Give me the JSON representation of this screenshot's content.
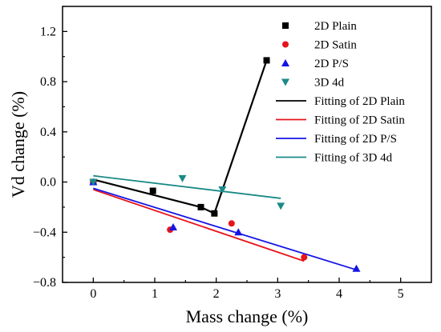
{
  "chart_data": {
    "type": "scatter",
    "xlabel": "Mass change (%)",
    "ylabel": "Vd change (%)",
    "xlim": [
      -0.5,
      5.5
    ],
    "ylim": [
      -0.8,
      1.4
    ],
    "xticks": [
      0,
      1,
      2,
      3,
      4,
      5
    ],
    "yticks": [
      -0.8,
      -0.4,
      0.0,
      0.4,
      0.8,
      1.2
    ],
    "xtick_labels": [
      "0",
      "1",
      "2",
      "3",
      "4",
      "5"
    ],
    "ytick_labels": [
      "−0.8",
      "−0.4",
      "0.0",
      "0.4",
      "0.8",
      "1.2"
    ],
    "grid": false,
    "legend_position": "top-right",
    "series": [
      {
        "name": "2D Plain",
        "marker": "square",
        "color": "#000000",
        "points": [
          [
            0.0,
            0.0
          ],
          [
            0.97,
            -0.07
          ],
          [
            1.75,
            -0.2
          ],
          [
            1.97,
            -0.25
          ],
          [
            2.82,
            0.97
          ]
        ]
      },
      {
        "name": "2D Satin",
        "marker": "circle",
        "color": "#e8141b",
        "points": [
          [
            0.0,
            0.0
          ],
          [
            1.25,
            -0.38
          ],
          [
            2.25,
            -0.33
          ],
          [
            3.43,
            -0.6
          ]
        ]
      },
      {
        "name": "2D P/S",
        "marker": "triangle-up",
        "color": "#1414e6",
        "points": [
          [
            0.0,
            0.0
          ],
          [
            1.3,
            -0.36
          ],
          [
            2.36,
            -0.4
          ],
          [
            4.28,
            -0.69
          ]
        ]
      },
      {
        "name": "3D 4d",
        "marker": "triangle-down",
        "color": "#1a8a87",
        "points": [
          [
            0.0,
            0.0
          ],
          [
            1.45,
            0.03
          ],
          [
            2.1,
            -0.06
          ],
          [
            3.05,
            -0.19
          ]
        ]
      }
    ],
    "fits": [
      {
        "name": "Fitting of 2D Plain",
        "color": "#000000",
        "width": 2.2,
        "points": [
          [
            0.0,
            0.02
          ],
          [
            1.75,
            -0.2
          ],
          [
            1.97,
            -0.25
          ],
          [
            2.82,
            0.97
          ]
        ],
        "markers": [
          [
            1.75,
            -0.2
          ]
        ]
      },
      {
        "name": "Fitting of 2D Satin",
        "color": "#e8141b",
        "width": 1.8,
        "points": [
          [
            0.0,
            -0.06
          ],
          [
            3.43,
            -0.63
          ]
        ],
        "markers": []
      },
      {
        "name": "Fitting of 2D P/S",
        "color": "#1414e6",
        "width": 1.8,
        "points": [
          [
            0.0,
            -0.05
          ],
          [
            4.28,
            -0.7
          ]
        ],
        "markers": []
      },
      {
        "name": "Fitting of 3D 4d",
        "color": "#1a8a87",
        "width": 1.8,
        "points": [
          [
            0.0,
            0.05
          ],
          [
            3.05,
            -0.13
          ]
        ],
        "markers": []
      }
    ]
  }
}
